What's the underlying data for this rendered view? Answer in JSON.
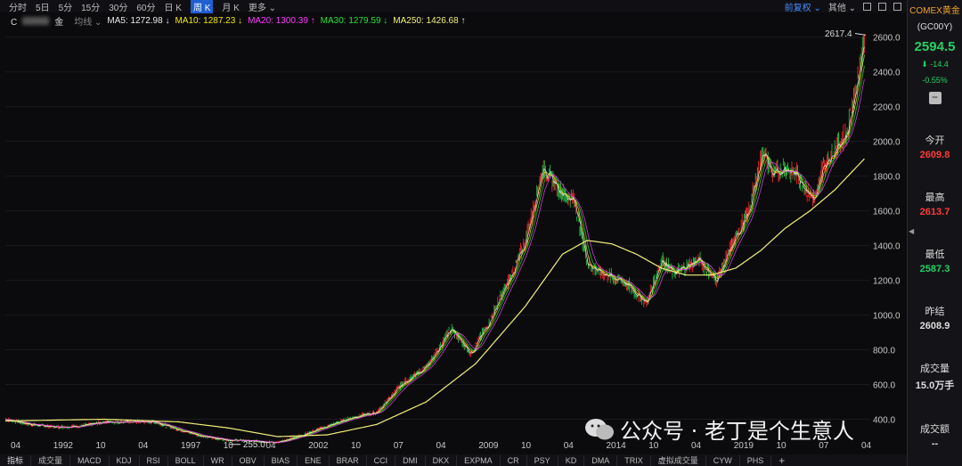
{
  "toolbar": {
    "periods": [
      "分时",
      "5日",
      "5分",
      "15分",
      "30分",
      "60分",
      "日 K",
      "周 K",
      "月 K",
      "更多"
    ],
    "active_period_index": 7,
    "adjust_label": "前复权",
    "other_label": "其他"
  },
  "ma_bar": {
    "symbol_prefix": "C",
    "symbol_suffix": "金",
    "ma_type": "均线",
    "ma5": "MA5: 1272.98 ↓",
    "ma10": "MA10: 1287.23 ↓",
    "ma20": "MA20: 1300.39 ↑",
    "ma30": "MA30: 1279.59 ↓",
    "ma250": "MA250: 1426.68 ↑"
  },
  "colors": {
    "ma5": "#e8e8e8",
    "ma10": "#f2e600",
    "ma20": "#ff3cff",
    "ma30": "#23e23a",
    "ma250": "#f3f07a",
    "up": "#ff2a2a",
    "down": "#22d04a"
  },
  "chart_data": {
    "type": "line",
    "title": "",
    "y_ticks": [
      "2600.0",
      "2400.0",
      "2200.0",
      "2000.0",
      "1800.0",
      "1600.0",
      "1400.0",
      "1200.0",
      "1000.0",
      "800.0",
      "600.0",
      "400.0"
    ],
    "ylim": [
      300,
      2650
    ],
    "x_ticks": [
      "04",
      "1992",
      "10",
      "04",
      "1997",
      "10",
      "04",
      "2002",
      "10",
      "07",
      "04",
      "2009",
      "10",
      "04",
      "2014",
      "10",
      "04",
      "2019",
      "10",
      "07",
      "04"
    ],
    "max_label": "2617.4",
    "min_label": "255.0",
    "price_series": {
      "name": "",
      "x": [
        1990.0,
        1991.0,
        1992.0,
        1993.0,
        1994.0,
        1995.0,
        1996.0,
        1997.0,
        1998.0,
        1999.0,
        2000.0,
        2001.0,
        2002.0,
        2003.0,
        2004.0,
        2005.0,
        2006.0,
        2007.0,
        2008.0,
        2008.8,
        2009.5,
        2010.5,
        2011.0,
        2011.7,
        2012.5,
        2013.0,
        2013.5,
        2014.0,
        2015.0,
        2015.9,
        2016.5,
        2017.0,
        2018.0,
        2018.7,
        2019.0,
        2019.6,
        2020.0,
        2020.6,
        2021.0,
        2021.5,
        2022.0,
        2022.7,
        2023.0,
        2023.5,
        2024.0,
        2024.4,
        2024.7
      ],
      "y": [
        400,
        370,
        355,
        360,
        385,
        385,
        385,
        340,
        300,
        280,
        275,
        265,
        310,
        360,
        410,
        440,
        600,
        700,
        920,
        780,
        950,
        1250,
        1420,
        1850,
        1700,
        1650,
        1300,
        1250,
        1190,
        1070,
        1320,
        1240,
        1320,
        1200,
        1290,
        1480,
        1580,
        1950,
        1800,
        1850,
        1800,
        1650,
        1850,
        1950,
        2050,
        2350,
        2600
      ]
    },
    "ma250_series": {
      "name": "MA250",
      "x": [
        1990.0,
        1994.0,
        1997.0,
        1999.0,
        2001.0,
        2003.0,
        2005.0,
        2007.0,
        2009.0,
        2011.0,
        2012.5,
        2013.5,
        2014.5,
        2015.5,
        2016.5,
        2017.5,
        2018.5,
        2019.5,
        2020.5,
        2021.5,
        2022.5,
        2023.5,
        2024.7
      ],
      "y": [
        390,
        400,
        385,
        350,
        300,
        310,
        370,
        500,
        720,
        1050,
        1350,
        1430,
        1410,
        1350,
        1270,
        1230,
        1230,
        1270,
        1370,
        1500,
        1600,
        1720,
        1900
      ]
    }
  },
  "right_panel": {
    "title": "COMEX黄金",
    "code": "(GC00Y)",
    "price": "2594.5",
    "change": "-14.4",
    "change_pct": "-0.55%",
    "open_label": "今开",
    "open": "2609.8",
    "high_label": "最高",
    "high": "2613.7",
    "low_label": "最低",
    "low": "2587.3",
    "prev_label": "昨结",
    "prev": "2608.9",
    "vol_label": "成交量",
    "vol": "15.0万手",
    "amount_label": "成交额",
    "amount": "--"
  },
  "bottom_bar": {
    "indicators": [
      "指标",
      "成交量",
      "MACD",
      "KDJ",
      "RSI",
      "BOLL",
      "WR",
      "OBV",
      "BIAS",
      "ENE",
      "BRAR",
      "CCI",
      "DMI",
      "DKX",
      "EXPMA",
      "CR",
      "PSY",
      "KD",
      "DMA",
      "TRIX",
      "虚拟成交量",
      "CYW",
      "PHS"
    ]
  },
  "watermark": "公众号 · 老丁是个生意人"
}
